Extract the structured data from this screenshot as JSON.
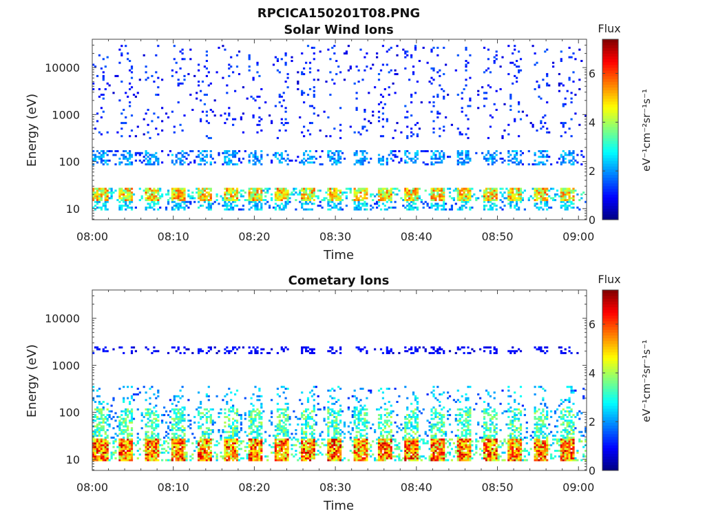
{
  "figure_title": "RPCICA150201T08.PNG",
  "colorbar": {
    "label": "Flux",
    "unit_text": "eV⁻¹cm⁻²sr⁻¹s⁻¹",
    "ticks": [
      0,
      2,
      4,
      6
    ],
    "range": [
      0,
      7.4
    ],
    "colormap": "jet"
  },
  "chart_data": [
    {
      "type": "heatmap",
      "title": "Solar Wind Ions",
      "xlabel": "Time",
      "ylabel": "Energy (eV)",
      "x_ticks": [
        "08:00",
        "08:10",
        "08:20",
        "08:30",
        "08:40",
        "08:50",
        "09:00"
      ],
      "x_range_minutes": [
        0,
        61
      ],
      "y_scale": "log",
      "y_ticks": [
        10,
        100,
        1000,
        10000
      ],
      "y_tick_labels": [
        "10",
        "100",
        "1000",
        "10000"
      ],
      "y_range": [
        5.8,
        40000
      ],
      "sweep_period_min": 3.2,
      "bands": [
        {
          "energy_low": 15,
          "energy_high": 28,
          "flux_peak": 6.0,
          "occupancy": 0.9
        },
        {
          "energy_low": 9,
          "energy_high": 15,
          "flux_peak": 3.2,
          "occupancy": 0.5
        },
        {
          "energy_low": 85,
          "energy_high": 180,
          "flux_peak": 2.6,
          "occupancy": 0.45
        },
        {
          "energy_low": 300,
          "energy_high": 30000,
          "flux_peak": 1.6,
          "occupancy": 0.08
        }
      ]
    },
    {
      "type": "heatmap",
      "title": "Cometary Ions",
      "xlabel": "Time",
      "ylabel": "Energy (eV)",
      "x_ticks": [
        "08:00",
        "08:10",
        "08:20",
        "08:30",
        "08:40",
        "08:50",
        "09:00"
      ],
      "x_range_minutes": [
        0,
        61
      ],
      "y_scale": "log",
      "y_ticks": [
        10,
        100,
        1000,
        10000
      ],
      "y_tick_labels": [
        "10",
        "100",
        "1000",
        "10000"
      ],
      "y_range": [
        5.8,
        40000
      ],
      "sweep_period_min": 3.2,
      "bands": [
        {
          "energy_low": 9,
          "energy_high": 28,
          "flux_peak": 7.0,
          "occupancy": 0.95
        },
        {
          "energy_low": 28,
          "energy_high": 120,
          "flux_peak": 4.2,
          "occupancy": 0.55
        },
        {
          "energy_low": 120,
          "energy_high": 350,
          "flux_peak": 3.0,
          "occupancy": 0.15
        },
        {
          "energy_low": 1800,
          "energy_high": 2600,
          "flux_peak": 1.2,
          "occupancy": 0.35
        }
      ]
    }
  ]
}
